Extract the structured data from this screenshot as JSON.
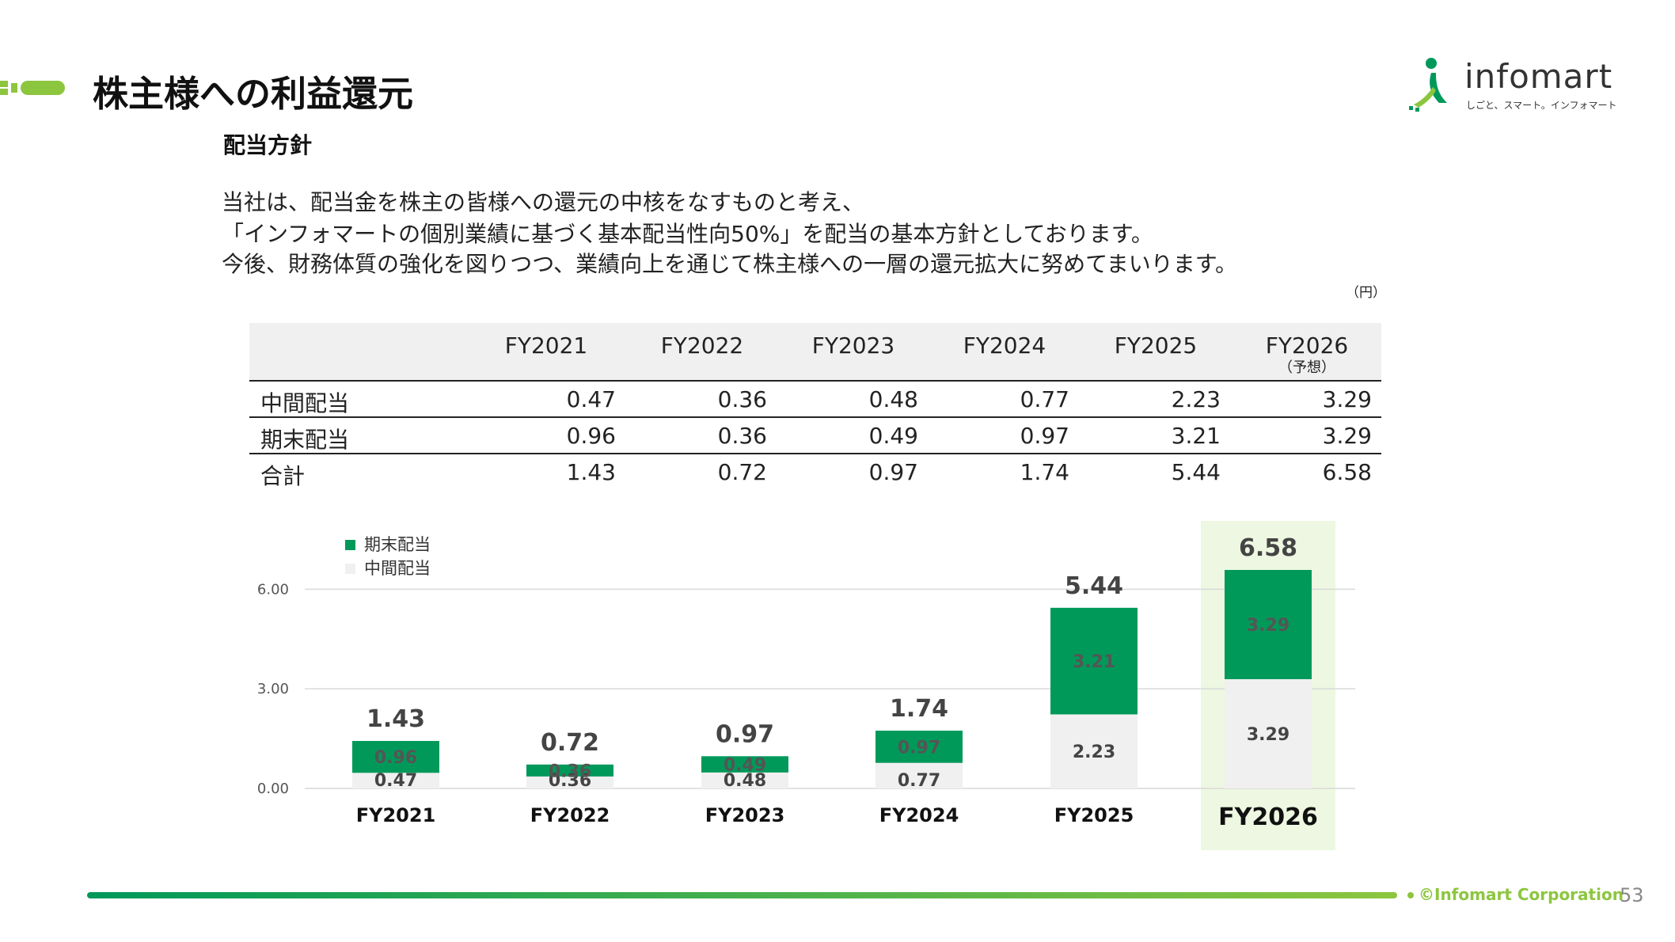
{
  "header": {
    "title": "株主様への利益還元"
  },
  "logo": {
    "word": "infomart",
    "tagline": "しごと、スマート。インフォマート"
  },
  "section": {
    "title": "配当方針"
  },
  "policy": {
    "lines": [
      "当社は、配当金を株主の皆様への還元の中核をなすものと考え、",
      "「インフォマートの個別業績に基づく基本配当性向50%」を配当の基本方針としております。",
      "今後、財務体質の強化を図りつつ、業績向上を通じて株主様への一層の還元拡大に努めてまいります。"
    ]
  },
  "table": {
    "unit": "（円）",
    "columns": [
      "FY2021",
      "FY2022",
      "FY2023",
      "FY2024",
      "FY2025",
      "FY2026"
    ],
    "forecast_note": "（予想）",
    "rows": [
      {
        "label": "中間配当",
        "values": [
          "0.47",
          "0.36",
          "0.48",
          "0.77",
          "2.23",
          "3.29"
        ]
      },
      {
        "label": "期末配当",
        "values": [
          "0.96",
          "0.36",
          "0.49",
          "0.97",
          "3.21",
          "3.29"
        ]
      },
      {
        "label": "合計",
        "values": [
          "1.43",
          "0.72",
          "0.97",
          "1.74",
          "5.44",
          "6.58"
        ]
      }
    ]
  },
  "chart_data": {
    "type": "bar",
    "stacked": true,
    "categories": [
      "FY2021",
      "FY2022",
      "FY2023",
      "FY2024",
      "FY2025",
      "FY2026"
    ],
    "series": [
      {
        "name": "中間配当",
        "values": [
          0.47,
          0.36,
          0.48,
          0.77,
          2.23,
          3.29
        ],
        "color": "#f0f0f0"
      },
      {
        "name": "期末配当",
        "values": [
          0.96,
          0.36,
          0.49,
          0.97,
          3.21,
          3.29
        ],
        "color": "#00995a"
      }
    ],
    "totals": [
      "1.43",
      "0.72",
      "0.97",
      "1.74",
      "5.44",
      "6.58"
    ],
    "ylim": [
      0,
      6.58
    ],
    "yticks": [
      "0.00",
      "3.00",
      "6.00"
    ],
    "ytick_values": [
      0,
      3,
      6
    ],
    "legend": {
      "position": "top-left",
      "items": [
        "期末配当",
        "中間配当"
      ]
    },
    "highlight_category": "FY2026",
    "highlight_color": "#edf7e1",
    "grid": true
  },
  "footer": {
    "copyright": "©Infomart Corporation",
    "page": "53"
  },
  "colors": {
    "accent_green": "#00995a",
    "light_green": "#8cc63f",
    "bar_light": "#f0f0f0"
  }
}
